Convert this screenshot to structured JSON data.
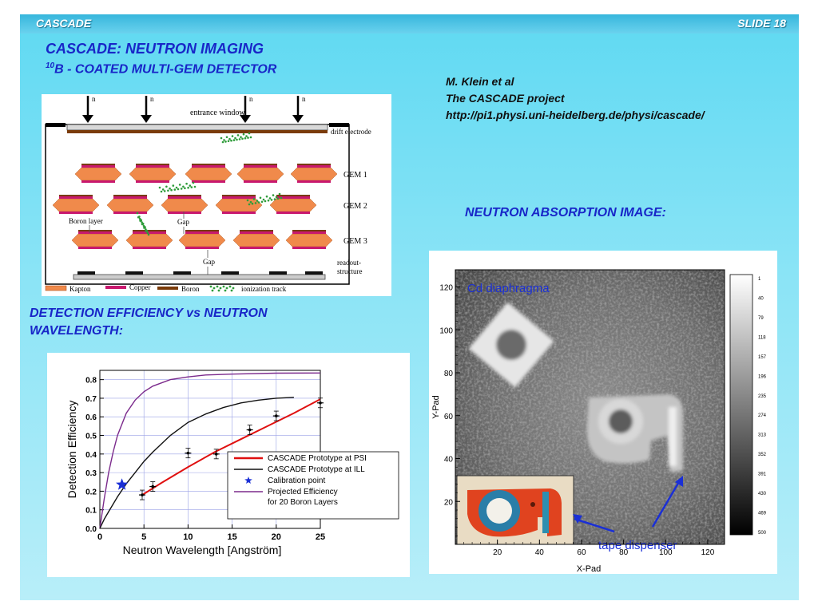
{
  "header": {
    "left": "CASCADE",
    "right": "SLIDE 18"
  },
  "title": {
    "line1": "CASCADE: NEUTRON IMAGING",
    "sup": "10",
    "line2": "B - COATED MULTI-GEM DETECTOR"
  },
  "reference": {
    "author": "M. Klein et al",
    "project": "The CASCADE project",
    "url": "http://pi1.physi.uni-heidelberg.de/physi/cascade/"
  },
  "captions": {
    "absorption": "NEUTRON ABSORPTION IMAGE:",
    "efficiency_line1": "DETECTION EFFICIENCY vs NEUTRON",
    "efficiency_line2": "WAVELENGTH:"
  },
  "detector": {
    "neutron_label": "n",
    "entrance_window": "entrance window",
    "drift_electrode": "drift electrode",
    "gem_labels": [
      "GEM 1",
      "GEM 2",
      "GEM 3"
    ],
    "boron_layer": "Boron layer",
    "gap_label": "Gap",
    "readout": [
      "readout-",
      "structure"
    ],
    "legend": [
      "Kapton",
      "Copper",
      "Boron",
      "ionization track"
    ],
    "colors": {
      "kapton": "#f08a4b",
      "copper": "#c8186e",
      "boron": "#7a3b0a",
      "track": "#2e9c3a"
    }
  },
  "chart_data": [
    {
      "type": "line",
      "xlabel": "Neutron Wavelength [Angström]",
      "ylabel": "Detection Efficiency",
      "xlim": [
        0,
        25
      ],
      "ylim": [
        0,
        0.85
      ],
      "xticks": [
        0,
        5,
        10,
        15,
        20,
        25
      ],
      "yticks": [
        0.0,
        0.1,
        0.2,
        0.3,
        0.4,
        0.5,
        0.6,
        0.7,
        0.8
      ],
      "grid": true,
      "legend_position": "bottom-right",
      "series": [
        {
          "name": "CASCADE Prototype at PSI",
          "color": "#e01010",
          "style": "line-with-errorbars",
          "x": [
            4.8,
            6,
            10,
            13.2,
            17,
            20,
            25
          ],
          "y": [
            0.18,
            0.225,
            0.405,
            0.4,
            0.53,
            0.605,
            0.675
          ],
          "fit_x": [
            4.8,
            7,
            10,
            13,
            16,
            19,
            22,
            25
          ],
          "fit_y": [
            0.18,
            0.245,
            0.33,
            0.41,
            0.48,
            0.55,
            0.62,
            0.695
          ]
        },
        {
          "name": "CASCADE Prototype at ILL",
          "color": "#111111",
          "style": "line",
          "x": [
            0,
            0.5,
            1,
            2,
            3,
            4,
            5,
            6,
            8,
            10,
            12,
            14,
            16,
            18,
            20,
            22
          ],
          "y": [
            0,
            0.05,
            0.09,
            0.17,
            0.24,
            0.3,
            0.36,
            0.41,
            0.5,
            0.57,
            0.615,
            0.65,
            0.675,
            0.69,
            0.7,
            0.705
          ]
        },
        {
          "name": "Calibration point",
          "color": "#1a2fd6",
          "style": "star",
          "x": [
            2.5
          ],
          "y": [
            0.235
          ]
        },
        {
          "name": "Projected Efficiency\nfor 20 Boron Layers",
          "color": "#7b2a8c",
          "style": "line",
          "x": [
            0,
            0.5,
            1,
            1.5,
            2,
            3,
            4,
            5,
            6,
            8,
            10,
            12,
            15,
            20,
            25
          ],
          "y": [
            0,
            0.16,
            0.3,
            0.41,
            0.5,
            0.62,
            0.69,
            0.735,
            0.765,
            0.8,
            0.815,
            0.825,
            0.83,
            0.835,
            0.836
          ]
        }
      ]
    },
    {
      "type": "heatmap",
      "xlabel": "X-Pad",
      "ylabel": "Y-Pad",
      "xticks": [
        20,
        40,
        60,
        80,
        100,
        120
      ],
      "yticks": [
        20,
        40,
        60,
        80,
        100,
        120
      ],
      "xlim": [
        0,
        128
      ],
      "ylim": [
        0,
        128
      ],
      "colorbar_ticks": [
        1,
        40,
        79,
        118,
        157,
        196,
        235,
        274,
        313,
        352,
        391,
        430,
        469,
        500
      ],
      "annotations": [
        "Cd diaphragma",
        "tape dispenser"
      ]
    }
  ]
}
